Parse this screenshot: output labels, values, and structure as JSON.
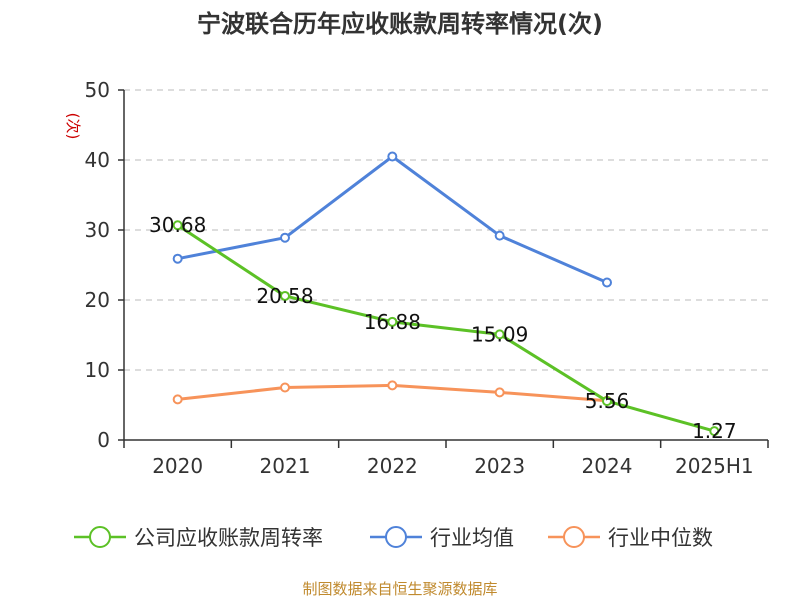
{
  "chart_data": {
    "type": "line",
    "title": "宁波联合历年应收账款周转率情况(次)",
    "unit_label": "(次)",
    "categories": [
      "2020",
      "2021",
      "2022",
      "2023",
      "2024",
      "2025H1"
    ],
    "ylim": [
      0,
      50
    ],
    "yticks": [
      0,
      10,
      20,
      30,
      40,
      50
    ],
    "grid": true,
    "legend_position": "bottom",
    "series": [
      {
        "name": "公司应收账款周转率",
        "color": "#5cc126",
        "values": [
          30.68,
          20.58,
          16.88,
          15.09,
          5.56,
          1.27
        ],
        "labels": [
          "30.68",
          "20.58",
          "16.88",
          "15.09",
          "5.56",
          "1.27"
        ]
      },
      {
        "name": "行业均值",
        "color": "#4f82d9",
        "values": [
          25.9,
          28.9,
          40.5,
          29.2,
          22.5,
          null
        ]
      },
      {
        "name": "行业中位数",
        "color": "#f7935a",
        "values": [
          5.8,
          7.5,
          7.8,
          6.8,
          5.6,
          null
        ]
      }
    ]
  },
  "source_note": "制图数据来自恒生聚源数据库"
}
